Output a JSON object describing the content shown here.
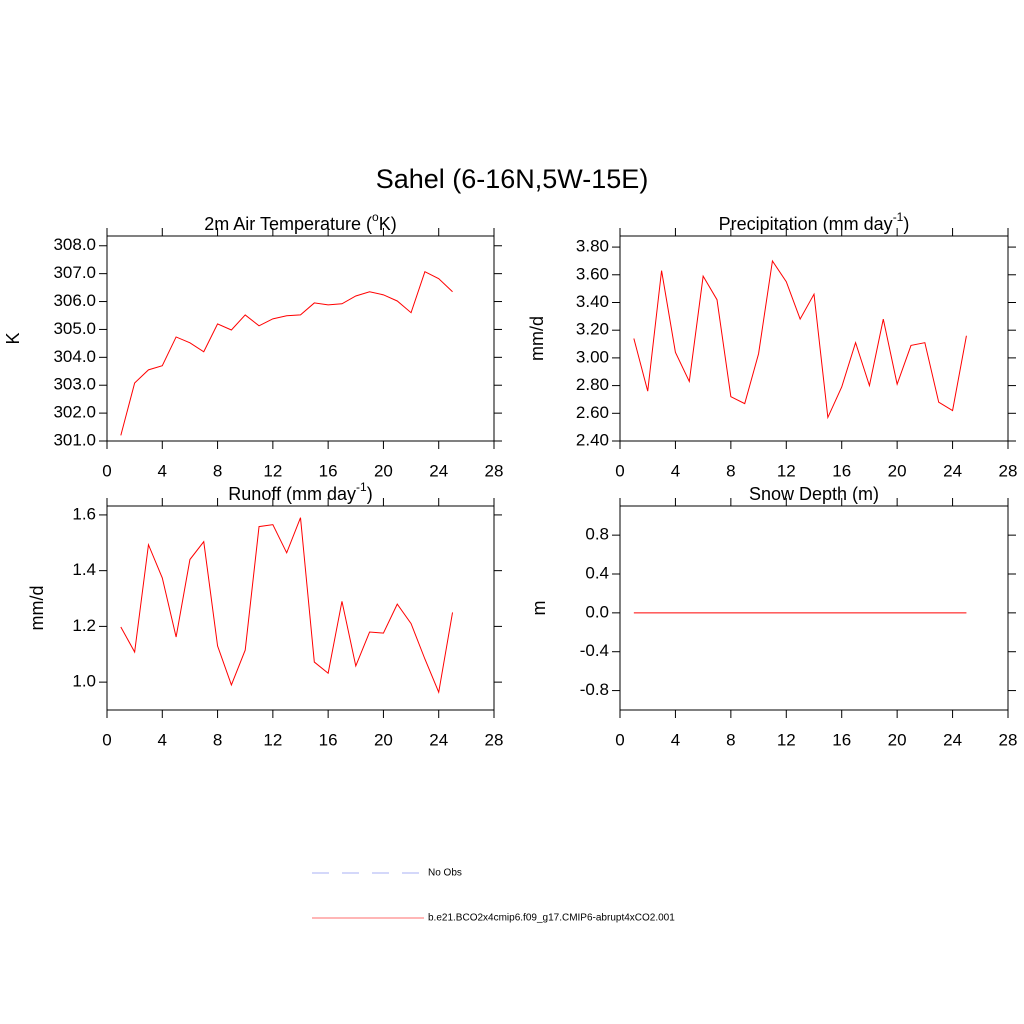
{
  "title": "Sahel (6-16N,5W-15E)",
  "legend": [
    {
      "label": "No Obs",
      "color": "#a9b2f5",
      "dashed": true
    },
    {
      "label": "b.e21.BCO2x4cmip6.f09_g17.CMIP6-abrupt4xCO2.001",
      "color": "#ff6e6e",
      "dashed": false
    }
  ],
  "chart_data": [
    {
      "type": "line",
      "title": [
        "2m Air Temperature (",
        "o",
        "K)"
      ],
      "y_label": "K",
      "x": [
        1,
        2,
        3,
        4,
        5,
        6,
        7,
        8,
        9,
        10,
        11,
        12,
        13,
        14,
        15,
        16,
        17,
        18,
        19,
        20,
        21,
        22,
        23,
        24,
        25
      ],
      "series": [
        {
          "color": "#ff0000",
          "values": [
            301.2,
            303.08,
            303.55,
            303.7,
            304.73,
            304.52,
            304.2,
            305.2,
            304.98,
            305.52,
            305.13,
            305.38,
            305.49,
            305.52,
            305.95,
            305.88,
            305.92,
            306.2,
            306.35,
            306.24,
            306.02,
            305.6,
            307.07,
            306.82,
            306.35
          ]
        }
      ],
      "xlim": [
        0,
        28
      ],
      "xticks": [
        0,
        4,
        8,
        12,
        16,
        20,
        24,
        28
      ],
      "ylim": [
        301.0,
        308.35
      ],
      "yticks": [
        {
          "value": 301,
          "label": "301.0"
        },
        {
          "value": 302,
          "label": "302.0"
        },
        {
          "value": 303,
          "label": "303.0"
        },
        {
          "value": 304,
          "label": "304.0"
        },
        {
          "value": 305,
          "label": "305.0"
        },
        {
          "value": 306,
          "label": "306.0"
        },
        {
          "value": 307,
          "label": "307.0"
        },
        {
          "value": 308,
          "label": "308.0"
        }
      ]
    },
    {
      "type": "line",
      "title": [
        "Precipitation (mm day",
        "-1",
        ")"
      ],
      "y_label": "mm/d",
      "x": [
        1,
        2,
        3,
        4,
        5,
        6,
        7,
        8,
        9,
        10,
        11,
        12,
        13,
        14,
        15,
        16,
        17,
        18,
        19,
        20,
        21,
        22,
        23,
        24,
        25
      ],
      "series": [
        {
          "color": "#ff0000",
          "values": [
            3.14,
            2.76,
            3.63,
            3.04,
            2.83,
            3.59,
            3.42,
            2.72,
            2.67,
            3.03,
            3.7,
            3.55,
            3.28,
            3.46,
            2.57,
            2.79,
            3.11,
            2.8,
            3.28,
            2.81,
            3.09,
            3.11,
            2.68,
            2.62,
            3.16
          ]
        }
      ],
      "xlim": [
        0,
        28
      ],
      "xticks": [
        0,
        4,
        8,
        12,
        16,
        20,
        24,
        28
      ],
      "ylim": [
        2.4,
        3.88
      ],
      "yticks": [
        {
          "value": 2.4,
          "label": "2.40"
        },
        {
          "value": 2.6,
          "label": "2.60"
        },
        {
          "value": 2.8,
          "label": "2.80"
        },
        {
          "value": 3.0,
          "label": "3.00"
        },
        {
          "value": 3.2,
          "label": "3.20"
        },
        {
          "value": 3.4,
          "label": "3.40"
        },
        {
          "value": 3.6,
          "label": "3.60"
        },
        {
          "value": 3.8,
          "label": "3.80"
        }
      ]
    },
    {
      "type": "line",
      "title": [
        "Runoff (mm day",
        "-1",
        ")"
      ],
      "y_label": "mm/d",
      "x": [
        1,
        2,
        3,
        4,
        5,
        6,
        7,
        8,
        9,
        10,
        11,
        12,
        13,
        14,
        15,
        16,
        17,
        18,
        19,
        20,
        21,
        22,
        23,
        24,
        25
      ],
      "series": [
        {
          "color": "#ff0000",
          "values": [
            1.198,
            1.108,
            1.493,
            1.374,
            1.162,
            1.44,
            1.504,
            1.13,
            0.99,
            1.115,
            1.558,
            1.565,
            1.464,
            1.59,
            1.072,
            1.032,
            1.29,
            1.058,
            1.18,
            1.176,
            1.28,
            1.21,
            1.083,
            0.964,
            1.25
          ]
        }
      ],
      "xlim": [
        0,
        28
      ],
      "xticks": [
        0,
        4,
        8,
        12,
        16,
        20,
        24,
        28
      ],
      "ylim": [
        0.9,
        1.632
      ],
      "yticks": [
        {
          "value": 1.0,
          "label": "1.0"
        },
        1.2,
        1.4,
        1.6
      ]
    },
    {
      "type": "line",
      "title": [
        "Snow Depth (m)"
      ],
      "y_label": "m",
      "x": [
        1,
        2,
        3,
        4,
        5,
        6,
        7,
        8,
        9,
        10,
        11,
        12,
        13,
        14,
        15,
        16,
        17,
        18,
        19,
        20,
        21,
        22,
        23,
        24,
        25
      ],
      "series": [
        {
          "color": "#ff0000",
          "values": [
            0,
            0,
            0,
            0,
            0,
            0,
            0,
            0,
            0,
            0,
            0,
            0,
            0,
            0,
            0,
            0,
            0,
            0,
            0,
            0,
            0,
            0,
            0,
            0,
            0
          ]
        }
      ],
      "xlim": [
        0,
        28
      ],
      "xticks": [
        0,
        4,
        8,
        12,
        16,
        20,
        24,
        28
      ],
      "ylim": [
        -1.0,
        1.1
      ],
      "yticks": [
        -0.8,
        -0.4,
        {
          "value": 0,
          "label": "0.0"
        },
        0.4,
        0.8
      ]
    }
  ]
}
